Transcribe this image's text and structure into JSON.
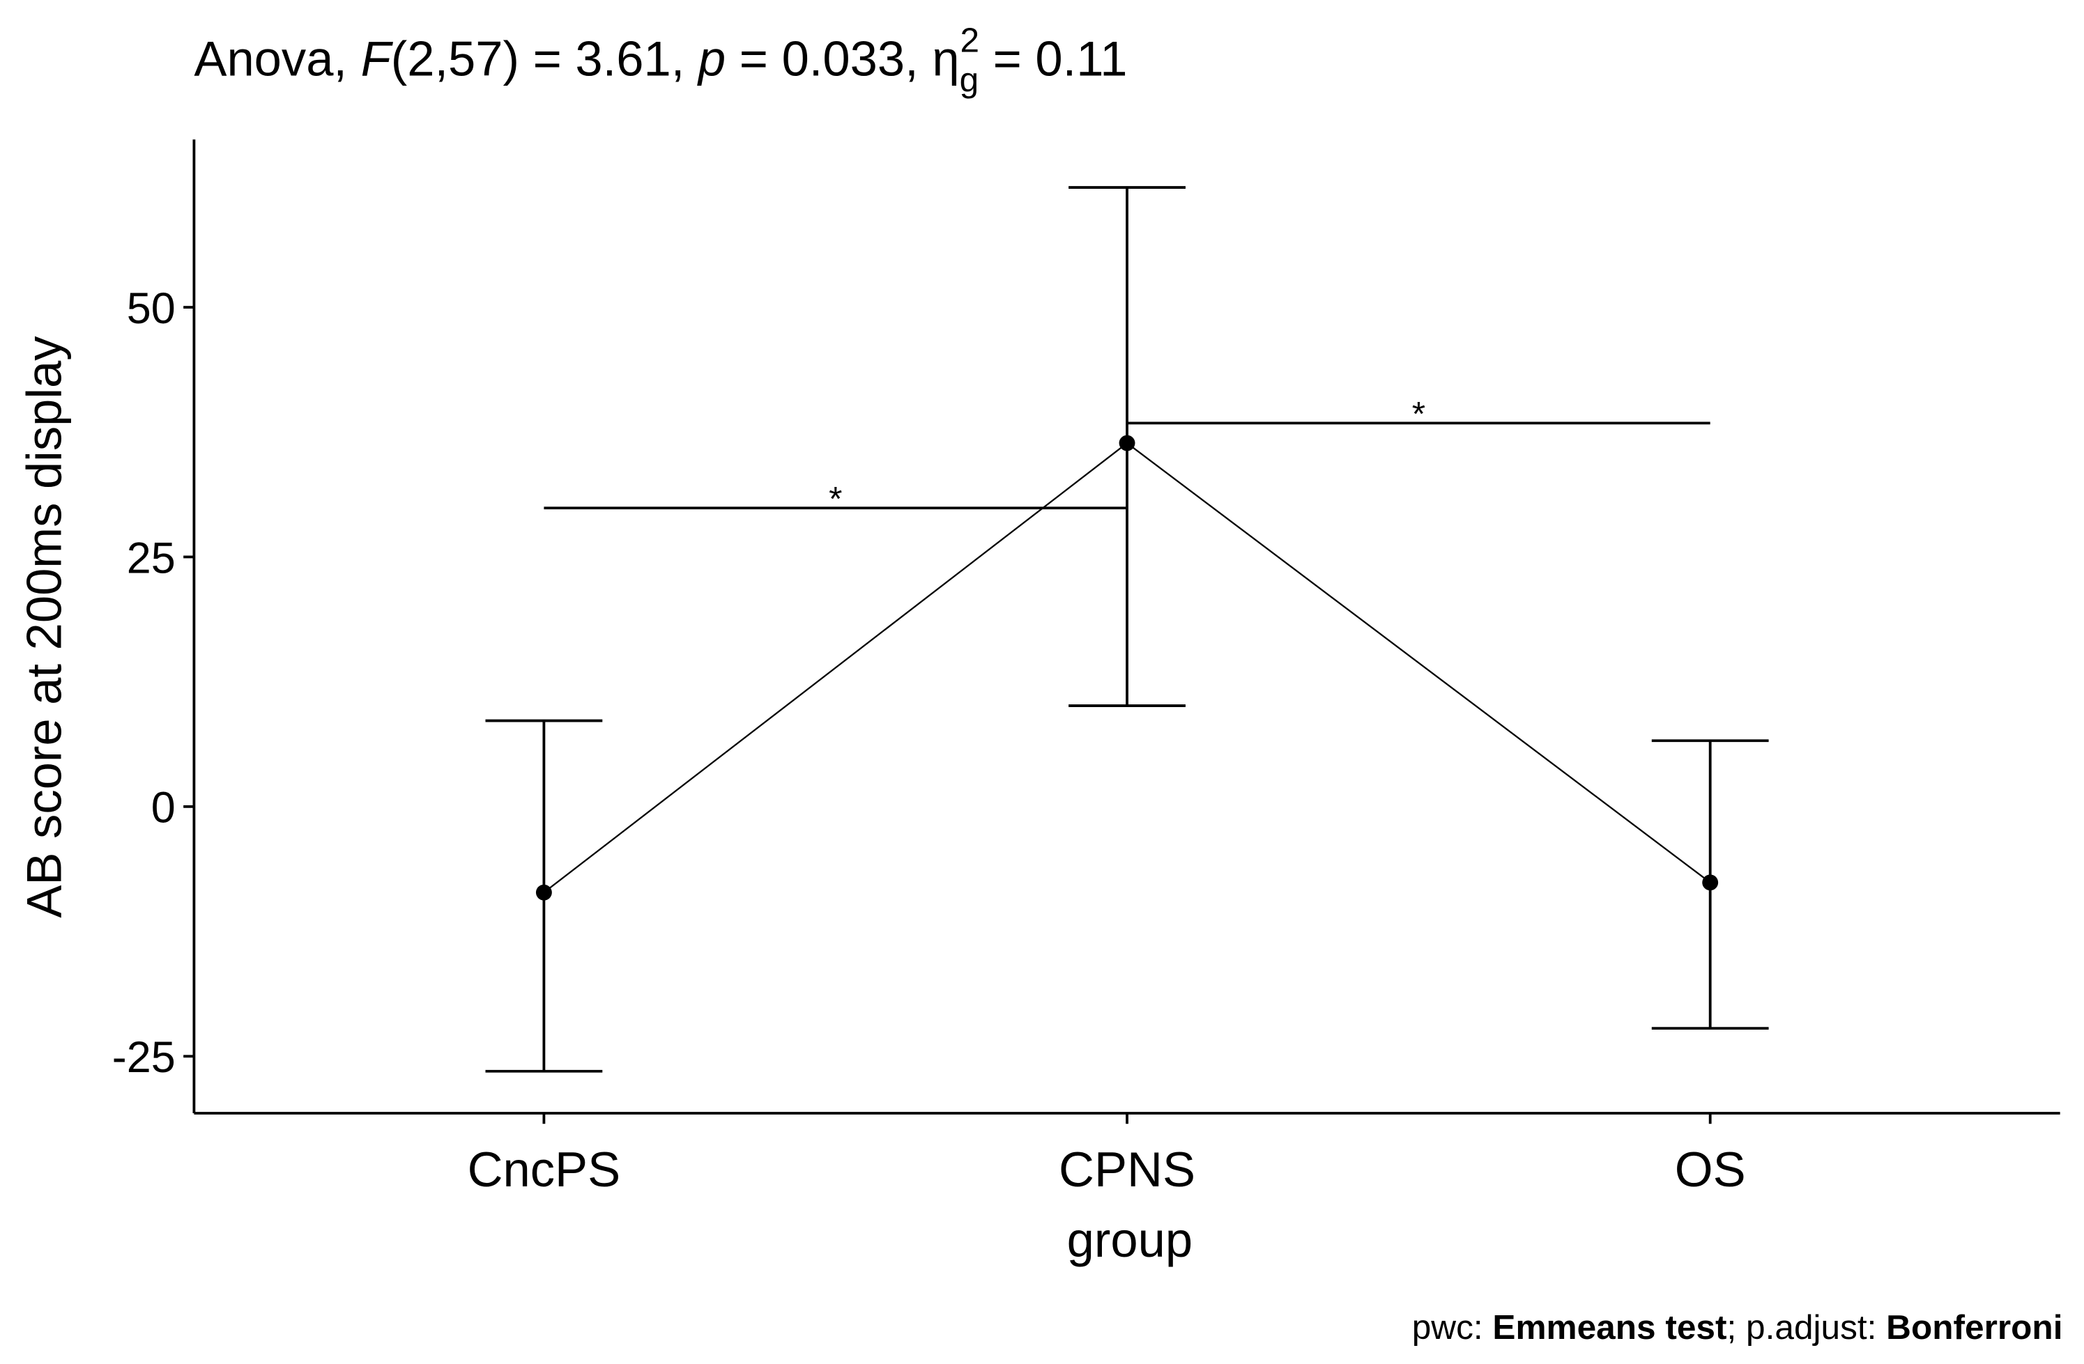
{
  "chart_data": {
    "type": "line",
    "title_parts": [
      {
        "text": "Anova, ",
        "style": "normal"
      },
      {
        "text": "F",
        "style": "italic"
      },
      {
        "text": "(2,57) = 3.61, ",
        "style": "normal"
      },
      {
        "text": "p",
        "style": "italic"
      },
      {
        "text": " = 0.033, ",
        "style": "normal"
      },
      {
        "text": "η",
        "style": "normal"
      },
      {
        "text": "g",
        "style": "subscript"
      },
      {
        "text": "2",
        "style": "superscript"
      },
      {
        "text": " = 0.11",
        "style": "normal"
      }
    ],
    "xlabel": "group",
    "ylabel": "AB score at 200ms display",
    "categories": [
      "CncPS",
      "CPNS",
      "OS"
    ],
    "series": [
      {
        "color": "#000000",
        "values": [
          -8.6,
          36.4,
          -7.6
        ],
        "upper": [
          8.6,
          62.0,
          6.6
        ],
        "lower": [
          -26.5,
          10.1,
          -22.2
        ]
      }
    ],
    "comparisons": [
      {
        "group1": "CncPS",
        "group2": "CPNS",
        "y": 29.9,
        "label": "*"
      },
      {
        "group1": "CPNS",
        "group2": "OS",
        "y": 38.4,
        "label": "*"
      }
    ],
    "ylim": [
      -30.7,
      66.8
    ],
    "yticks": [
      -25,
      0,
      25,
      50
    ],
    "caption_parts": [
      {
        "text": "pwc: ",
        "style": "normal"
      },
      {
        "text": "Emmeans test",
        "style": "bold"
      },
      {
        "text": "; p.adjust: ",
        "style": "normal"
      },
      {
        "text": "Bonferroni",
        "style": "bold"
      }
    ]
  }
}
